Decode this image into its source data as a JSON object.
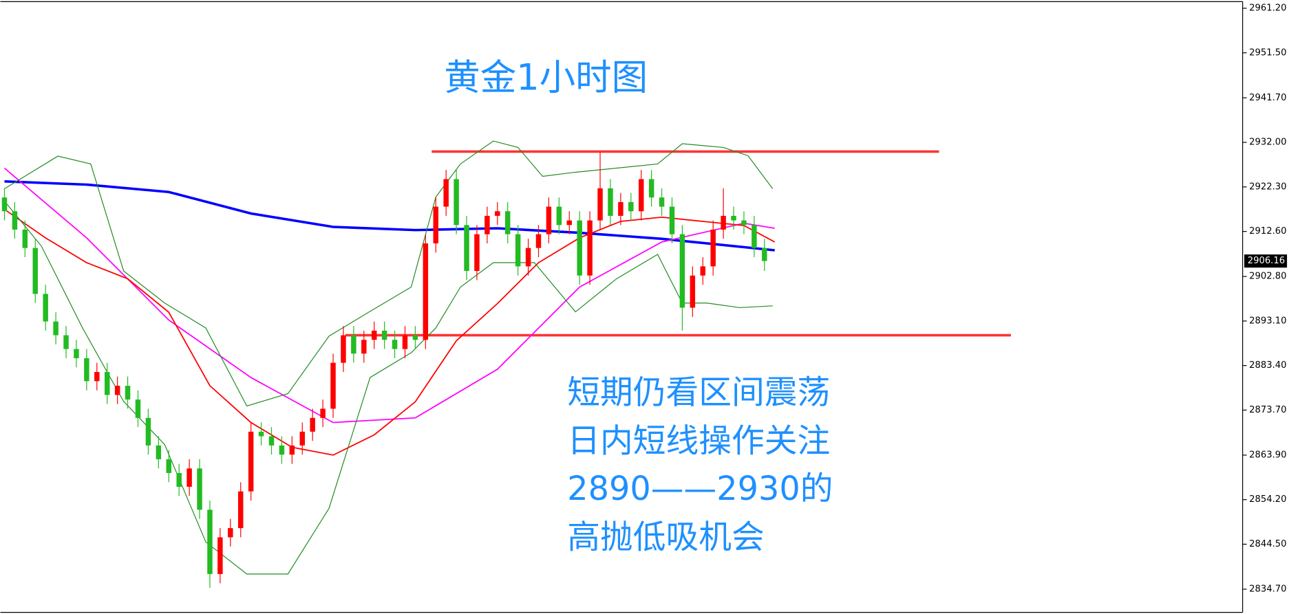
{
  "chart_data": {
    "type": "candlestick",
    "title": "黄金1小时图",
    "annotations": [
      "短期仍看区间震荡",
      "日内短线操作关注",
      "2890——2930的",
      "高抛低吸机会"
    ],
    "up_color": "#ff0000",
    "down_color": "#22bb22",
    "xlim": [
      -0.4,
      120.56
    ],
    "ylim": [
      2829.3,
      2963.0
    ],
    "yticks": [
      {
        "value": 2961.2,
        "label": "2961.20"
      },
      {
        "value": 2951.5,
        "label": "2951.50"
      },
      {
        "value": 2941.7,
        "label": "2941.70"
      },
      {
        "value": 2932.0,
        "label": "2932.00"
      },
      {
        "value": 2922.3,
        "label": "2922.30"
      },
      {
        "value": 2912.6,
        "label": "2912.60"
      },
      {
        "value": 2902.8,
        "label": "2902.80"
      },
      {
        "value": 2893.1,
        "label": "2893.10"
      },
      {
        "value": 2883.4,
        "label": "2883.40"
      },
      {
        "value": 2873.7,
        "label": "2873.70"
      },
      {
        "value": 2863.9,
        "label": "2863.90"
      },
      {
        "value": 2854.2,
        "label": "2854.20"
      },
      {
        "value": 2844.5,
        "label": "2844.50"
      },
      {
        "value": 2834.7,
        "label": "2834.70"
      }
    ],
    "last_price": 2906.16,
    "open": [
      2920,
      2917,
      2913,
      2909,
      2899,
      2893,
      2890,
      2887,
      2885,
      2880,
      2882,
      2877,
      2879,
      2876,
      2872,
      2866,
      2863,
      2860,
      2857,
      2861,
      2852,
      2838,
      2846,
      2848,
      2856,
      2869,
      2868,
      2866,
      2864,
      2866,
      2869,
      2872,
      2874,
      2884,
      2890,
      2886,
      2889,
      2891,
      2889,
      2887,
      2890,
      2889,
      2910,
      2918,
      2924,
      2914,
      2904,
      2912,
      2916,
      2917,
      2912,
      2905,
      2909,
      2912,
      2918,
      2914,
      2915,
      2903,
      2915,
      2922,
      2916,
      2919,
      2917,
      2924,
      2920,
      2918,
      2912,
      2896,
      2903,
      2905,
      2913,
      2916,
      2915,
      2914,
      2909
    ],
    "high": [
      2922,
      2919,
      2915,
      2911,
      2901,
      2895,
      2892,
      2889,
      2887,
      2884,
      2884,
      2881,
      2881,
      2878,
      2874,
      2868,
      2865,
      2862,
      2863,
      2863,
      2854,
      2848,
      2850,
      2858,
      2871,
      2871,
      2870,
      2868,
      2868,
      2871,
      2874,
      2876,
      2886,
      2892,
      2892,
      2891,
      2893,
      2893,
      2891,
      2892,
      2892,
      2912,
      2920,
      2926,
      2926,
      2916,
      2914,
      2918,
      2919,
      2919,
      2914,
      2911,
      2914,
      2920,
      2920,
      2917,
      2917,
      2917,
      2930,
      2924,
      2921,
      2921,
      2926,
      2926,
      2922,
      2920,
      2914,
      2905,
      2907,
      2915,
      2922,
      2918,
      2917,
      2916,
      2911
    ],
    "low": [
      2915,
      2911,
      2907,
      2897,
      2891,
      2888,
      2885,
      2883,
      2878,
      2878,
      2875,
      2875,
      2874,
      2870,
      2864,
      2861,
      2858,
      2855,
      2855,
      2850,
      2835,
      2836,
      2844,
      2846,
      2854,
      2866,
      2864,
      2862,
      2862,
      2864,
      2867,
      2870,
      2872,
      2882,
      2884,
      2884,
      2887,
      2887,
      2885,
      2885,
      2887,
      2887,
      2908,
      2916,
      2912,
      2902,
      2902,
      2910,
      2914,
      2910,
      2903,
      2903,
      2907,
      2910,
      2912,
      2912,
      2901,
      2901,
      2913,
      2914,
      2914,
      2915,
      2915,
      2918,
      2916,
      2910,
      2891,
      2894,
      2901,
      2903,
      2911,
      2913,
      2912,
      2907,
      2904
    ],
    "close": [
      2917,
      2913,
      2909,
      2899,
      2893,
      2890,
      2887,
      2885,
      2880,
      2882,
      2877,
      2879,
      2876,
      2872,
      2866,
      2863,
      2860,
      2857,
      2861,
      2852,
      2838,
      2846,
      2848,
      2856,
      2869,
      2868,
      2866,
      2864,
      2866,
      2869,
      2872,
      2874,
      2884,
      2890,
      2886,
      2889,
      2891,
      2889,
      2887,
      2890,
      2889,
      2910,
      2918,
      2924,
      2914,
      2904,
      2912,
      2916,
      2917,
      2912,
      2905,
      2909,
      2912,
      2918,
      2914,
      2915,
      2903,
      2915,
      2922,
      2916,
      2919,
      2917,
      2924,
      2920,
      2918,
      2912,
      2896,
      2903,
      2905,
      2913,
      2916,
      2915,
      2914,
      2909,
      2906.16
    ],
    "series": [
      {
        "color": "#0000ff",
        "width": 3,
        "x": [
          0,
          8,
          16,
          24,
          32,
          40,
          48,
          56,
          64,
          75
        ],
        "values": [
          2923.5,
          2922.8,
          2921.2,
          2916.5,
          2913.6,
          2912.9,
          2913.3,
          2912.3,
          2911,
          2908.5
        ]
      },
      {
        "color": "#ff00ff",
        "width": 1.5,
        "x": [
          0,
          8,
          16,
          24,
          32,
          40,
          48,
          56,
          64,
          72,
          75
        ],
        "values": [
          2926.4,
          2911.2,
          2893.3,
          2880.8,
          2871,
          2872,
          2882.6,
          2900.5,
          2910.3,
          2914.4,
          2913.3
        ]
      },
      {
        "color": "#ff0000",
        "width": 1.5,
        "x": [
          0,
          4,
          8,
          12,
          16,
          20,
          24,
          28,
          32,
          36,
          40,
          44,
          48,
          52,
          56,
          60,
          64,
          68,
          72,
          75
        ],
        "values": [
          2917.4,
          2911.2,
          2905.8,
          2902.3,
          2895,
          2879,
          2871,
          2865.6,
          2863.9,
          2868.3,
          2875.5,
          2888.8,
          2896.9,
          2905.8,
          2911.2,
          2914.8,
          2915.7,
          2914.8,
          2913.9,
          2910.3
        ]
      },
      {
        "color": "#228b22",
        "width": 1,
        "x": [
          0,
          5.2,
          8.4,
          11.6,
          15.6,
          19.6,
          23.6,
          27.6,
          31.6,
          35.6,
          39.6,
          42,
          44.4,
          47.6,
          50,
          52.4,
          55.6,
          59.6,
          63.6,
          66,
          70,
          72.4,
          74.8
        ],
        "values": [
          2921.9,
          2929,
          2927.3,
          2904,
          2897,
          2891.6,
          2874.6,
          2877.3,
          2889.8,
          2895.2,
          2900.5,
          2920.1,
          2927.3,
          2932.3,
          2930.9,
          2924.6,
          2925.5,
          2926.4,
          2927.3,
          2931.7,
          2930.9,
          2929.1,
          2921.9
        ]
      },
      {
        "color": "#228b22",
        "width": 1,
        "x": [
          0,
          3.6,
          7.6,
          11.6,
          15.6,
          19.6,
          23.6,
          27.6,
          31.6,
          35.6,
          39.6,
          42,
          44.4,
          47.6,
          51.6,
          55.6,
          59.6,
          63.6,
          66,
          68.4,
          71.6,
          74.8
        ],
        "values": [
          2919.2,
          2909.4,
          2891.6,
          2875.6,
          2866.2,
          2845,
          2838,
          2838,
          2852.3,
          2880.8,
          2886.2,
          2891.6,
          2900.5,
          2905.8,
          2905.8,
          2895.1,
          2902.3,
          2907.6,
          2897,
          2897,
          2896,
          2896.4
        ]
      }
    ],
    "levels": [
      {
        "value": 2930,
        "x_start": 41.6,
        "x_end": 91,
        "color": "#ff3333"
      },
      {
        "value": 2890,
        "x_start": 33.2,
        "x_end": 98,
        "color": "#ff3333"
      }
    ]
  }
}
